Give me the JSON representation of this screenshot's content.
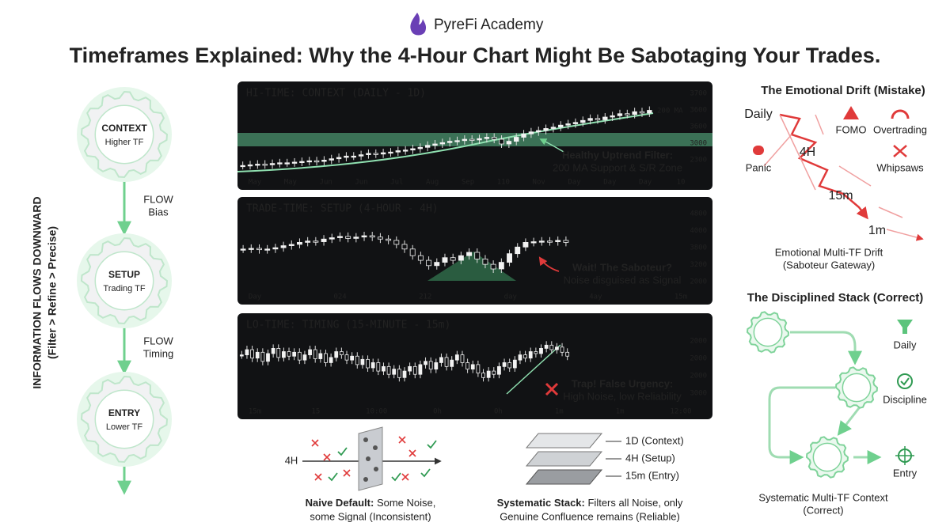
{
  "header": {
    "brand": "PyreFi Academy",
    "title": "Timeframes Explained: Why the 4-Hour Chart Might Be Sabotaging Your Trades."
  },
  "flow": {
    "axis_title": "INFORMATION FLOWS DOWNWARD",
    "axis_subtitle": "(Filter > Refine > Precise)",
    "nodes": [
      {
        "label": "CONTEXT",
        "sub": "Higher TF"
      },
      {
        "label": "SETUP",
        "sub": "Trading TF"
      },
      {
        "label": "ENTRY",
        "sub": "Lower TF"
      }
    ],
    "arrows": [
      {
        "label": "FLOW",
        "sub": "Bias"
      },
      {
        "label": "FLOW",
        "sub": "Timing"
      }
    ]
  },
  "panels": [
    {
      "title": "HI-TIME: CONTEXT (DAILY - 1D)",
      "y_labels": [
        "3700",
        "3600",
        "3600",
        "3000",
        "2300"
      ],
      "x_labels": [
        "May",
        "May",
        "Jun",
        "Jun",
        "Jul",
        "Aug",
        "Sep",
        "110",
        "Nov",
        "Day",
        "Day",
        "Day",
        "10"
      ],
      "ma_label": "200 MA",
      "note_title": "Healthy Uptrend Filter:",
      "note_text": "200 MA Support & S/R Zone",
      "closes": [
        8,
        9,
        10,
        9,
        11,
        12,
        12,
        13,
        14,
        15,
        14,
        16,
        18,
        20,
        22,
        22,
        24,
        26,
        25,
        27,
        28,
        30,
        31,
        33,
        35,
        38,
        40,
        42,
        44,
        45,
        47,
        46,
        48,
        50,
        47,
        40,
        44,
        50,
        55,
        58,
        60,
        63,
        65,
        68,
        70,
        72,
        75,
        78,
        76,
        80,
        82,
        85,
        84,
        88,
        86,
        90
      ]
    },
    {
      "title": "TRADE-TIME: SETUP (4-HOUR - 4H)",
      "y_labels": [
        "4800",
        "4000",
        "3800",
        "3200",
        "2000"
      ],
      "x_labels": [
        "Day",
        "024",
        "212",
        "day",
        "4ay",
        "15m"
      ],
      "note_title": "Wait! The Saboteur?",
      "note_text": "Noise disguised as Signal",
      "closes": [
        55,
        56,
        54,
        55,
        57,
        60,
        62,
        65,
        67,
        66,
        70,
        72,
        74,
        71,
        73,
        75,
        73,
        70,
        68,
        62,
        55,
        45,
        38,
        30,
        35,
        42,
        38,
        45,
        50,
        40,
        32,
        25,
        35,
        48,
        58,
        65,
        66,
        67,
        66,
        68,
        65
      ]
    },
    {
      "title": "LO-TIME: TIMING (15-MINUTE - 15m)",
      "y_labels": [
        "2000",
        "2000",
        "2000",
        "3000"
      ],
      "x_labels": [
        "15m",
        "15",
        "10:00",
        "0h",
        "0h",
        "1m",
        "1m",
        "12:00"
      ],
      "note_title": "Trap! False Urgency:",
      "note_text": "High Noise, low Reliability",
      "closes": [
        70,
        78,
        65,
        74,
        60,
        72,
        80,
        66,
        75,
        68,
        74,
        62,
        70,
        78,
        64,
        72,
        58,
        66,
        75,
        70,
        62,
        68,
        55,
        63,
        50,
        58,
        45,
        52,
        40,
        48,
        35,
        45,
        52,
        40,
        55,
        60,
        48,
        58,
        66,
        52,
        62,
        70,
        58,
        48,
        55,
        42,
        35,
        45,
        40,
        52,
        58,
        50,
        62,
        70,
        65,
        75,
        72,
        80,
        85,
        78,
        82,
        74,
        68
      ]
    }
  ],
  "naive": {
    "tf": "4H",
    "caption_bold": "Naive Default:",
    "caption_1": "Some Noise,",
    "caption_2": "some Signal (Inconsistent)"
  },
  "stack": {
    "layers": [
      "1D (Context)",
      "4H (Setup)",
      "15m (Entry)"
    ],
    "caption_bold": "Systematic Stack:",
    "caption_1": "Filters all Noise, only",
    "caption_2": "Genuine Confluence remains (Reliable)"
  },
  "drift": {
    "title": "The Emotional Drift (Mistake)",
    "timeframes": [
      "Daily",
      "4H",
      "15m",
      "1m"
    ],
    "emotions": [
      "FOMO",
      "Overtrading",
      "Panic",
      "Whipsaws"
    ],
    "caption": [
      "Emotional Multi-TF Drift",
      "(Saboteur Gateway)"
    ]
  },
  "disciplined": {
    "title": "The Disciplined Stack (Correct)",
    "steps": [
      "Daily",
      "Discipline",
      "Entry"
    ],
    "caption": [
      "Systematic Multi-TF Context",
      "(Correct)"
    ]
  }
}
